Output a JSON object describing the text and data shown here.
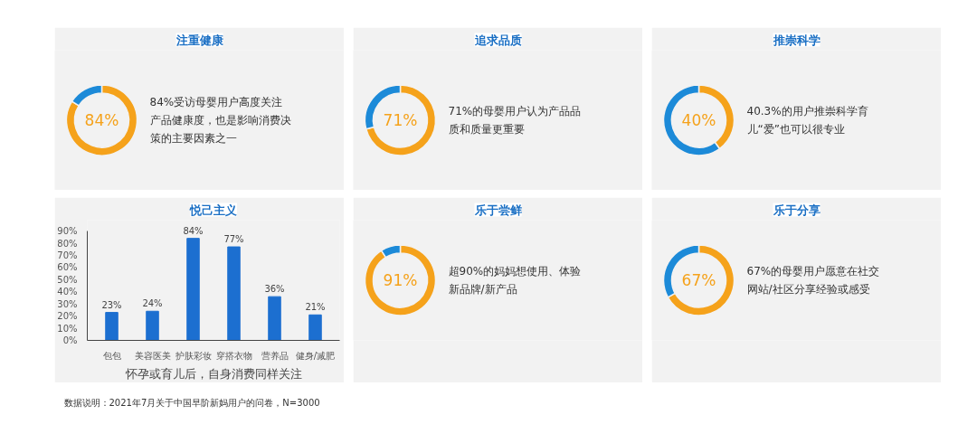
{
  "chart_data": [
    {
      "type": "donut",
      "title": "注重健康",
      "categories": [
        null,
        null
      ],
      "values": [
        84,
        16
      ],
      "colors": [
        "#f5a21b",
        "#1c8ad8"
      ],
      "value_labels": [
        "84%",
        null
      ],
      "annotations": [
        "84%受访母婴用户高度关注产品健康度，也是影响消费决策的主要因素之一"
      ]
    },
    {
      "type": "donut",
      "title": "追求品质",
      "categories": [
        null,
        null
      ],
      "values": [
        71,
        29
      ],
      "colors": [
        "#f5a21b",
        "#1c8ad8"
      ],
      "value_labels": [
        "71%",
        null
      ],
      "annotations": [
        "71%的母婴用户认为产品品质和质量更重要"
      ]
    },
    {
      "type": "donut",
      "title": "推崇科学",
      "categories": [
        null,
        null
      ],
      "values": [
        40,
        60
      ],
      "colors": [
        "#f5a21b",
        "#1c8ad8"
      ],
      "value_labels": [
        "40%",
        null
      ],
      "annotations": [
        "40.3%的用户推崇科学育儿“爱”也可以很专业"
      ]
    },
    {
      "type": "bar",
      "title": "悦己主义",
      "xlabel": "怀孕或育儿后，自身消费同样关注",
      "categories": [
        "包包",
        "美容医美",
        "护肤彩妆",
        "穿搭衣物",
        "营养品",
        "健身/减肥"
      ],
      "values": [
        23,
        24,
        84,
        77,
        36,
        21
      ],
      "color": "#1c6fd0",
      "value_labels": [
        "23%",
        "24%",
        "84%",
        "77%",
        "36%",
        "21%"
      ],
      "ylim": [
        0,
        90
      ],
      "yticks": [
        {
          "value": 0,
          "label": "0%"
        },
        {
          "value": 10,
          "label": "10%"
        },
        {
          "value": 20,
          "label": "20%"
        },
        {
          "value": 30,
          "label": "30%"
        },
        {
          "value": 40,
          "label": "40%"
        },
        {
          "value": 50,
          "label": "50%"
        },
        {
          "value": 60,
          "label": "60%"
        },
        {
          "value": 70,
          "label": "70%"
        },
        {
          "value": 80,
          "label": "80%"
        },
        {
          "value": 90,
          "label": "90%"
        }
      ]
    },
    {
      "type": "donut",
      "title": "乐于尝鲜",
      "categories": [
        null,
        null
      ],
      "values": [
        91,
        9
      ],
      "colors": [
        "#f5a21b",
        "#1c8ad8"
      ],
      "value_labels": [
        "91%",
        null
      ],
      "annotations": [
        "超90%的妈妈想使用、体验新品牌/新产品"
      ]
    },
    {
      "type": "donut",
      "title": "乐于分享",
      "categories": [
        null,
        null
      ],
      "values": [
        67,
        33
      ],
      "colors": [
        "#f5a21b",
        "#1c8ad8"
      ],
      "value_labels": [
        "67%",
        null
      ],
      "annotations": [
        "67%的母婴用户愿意在社交网站/社区分享经验或感受"
      ]
    },
    {
      "type": "other",
      "annotations": [
        "数据说明：2021年7月关于中国早阶新妈用户的问卷，N=3000"
      ]
    }
  ]
}
